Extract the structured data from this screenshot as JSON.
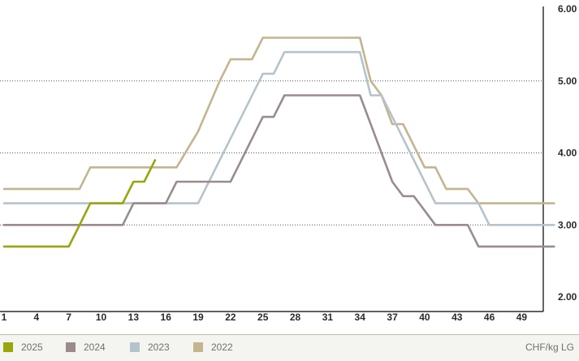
{
  "chart_data": {
    "type": "line",
    "ylim": [
      2,
      6
    ],
    "y_ticks": [
      "2.00",
      "3.00",
      "4.00",
      "5.00",
      "6.00"
    ],
    "x_ticks": [
      "1",
      "4",
      "7",
      "10",
      "13",
      "16",
      "19",
      "22",
      "25",
      "28",
      "31",
      "34",
      "37",
      "40",
      "43",
      "46",
      "49"
    ],
    "xlim": [
      1,
      52
    ],
    "unit_label": "CHF/kg LG",
    "legend_position": "bottom",
    "grid": "horizontal dotted",
    "series": [
      {
        "name": "2022",
        "color": "#c4b48f",
        "points": [
          [
            1,
            3.5
          ],
          [
            8,
            3.5
          ],
          [
            9,
            3.8
          ],
          [
            16,
            3.8
          ],
          [
            17,
            3.8
          ],
          [
            19,
            4.3
          ],
          [
            21,
            5.0
          ],
          [
            22,
            5.3
          ],
          [
            24,
            5.3
          ],
          [
            25,
            5.6
          ],
          [
            34,
            5.6
          ],
          [
            35,
            5.0
          ],
          [
            36,
            4.8
          ],
          [
            37,
            4.4
          ],
          [
            38,
            4.4
          ],
          [
            40,
            3.8
          ],
          [
            41,
            3.8
          ],
          [
            42,
            3.5
          ],
          [
            44,
            3.5
          ],
          [
            45,
            3.3
          ],
          [
            52,
            3.3
          ]
        ]
      },
      {
        "name": "2023",
        "color": "#b4c3cc",
        "points": [
          [
            1,
            3.3
          ],
          [
            18,
            3.3
          ],
          [
            19,
            3.3
          ],
          [
            23,
            4.5
          ],
          [
            25,
            5.1
          ],
          [
            26,
            5.1
          ],
          [
            27,
            5.4
          ],
          [
            34,
            5.4
          ],
          [
            35,
            4.8
          ],
          [
            36,
            4.8
          ],
          [
            37,
            4.5
          ],
          [
            41,
            3.3
          ],
          [
            45,
            3.3
          ],
          [
            46,
            3.0
          ],
          [
            52,
            3.0
          ]
        ]
      },
      {
        "name": "2024",
        "color": "#9a8c8c",
        "points": [
          [
            1,
            3.0
          ],
          [
            12,
            3.0
          ],
          [
            13,
            3.3
          ],
          [
            16,
            3.3
          ],
          [
            17,
            3.6
          ],
          [
            22,
            3.6
          ],
          [
            23,
            3.9
          ],
          [
            25,
            4.5
          ],
          [
            26,
            4.5
          ],
          [
            27,
            4.8
          ],
          [
            34,
            4.8
          ],
          [
            37,
            3.6
          ],
          [
            38,
            3.4
          ],
          [
            39,
            3.4
          ],
          [
            41,
            3.0
          ],
          [
            44,
            3.0
          ],
          [
            45,
            2.7
          ],
          [
            52,
            2.7
          ]
        ]
      },
      {
        "name": "2025",
        "color": "#98a50f",
        "points": [
          [
            1,
            2.7
          ],
          [
            7,
            2.7
          ],
          [
            8,
            3.0
          ],
          [
            9,
            3.3
          ],
          [
            12,
            3.3
          ],
          [
            13,
            3.6
          ],
          [
            14,
            3.6
          ],
          [
            15,
            3.9
          ]
        ]
      }
    ]
  }
}
